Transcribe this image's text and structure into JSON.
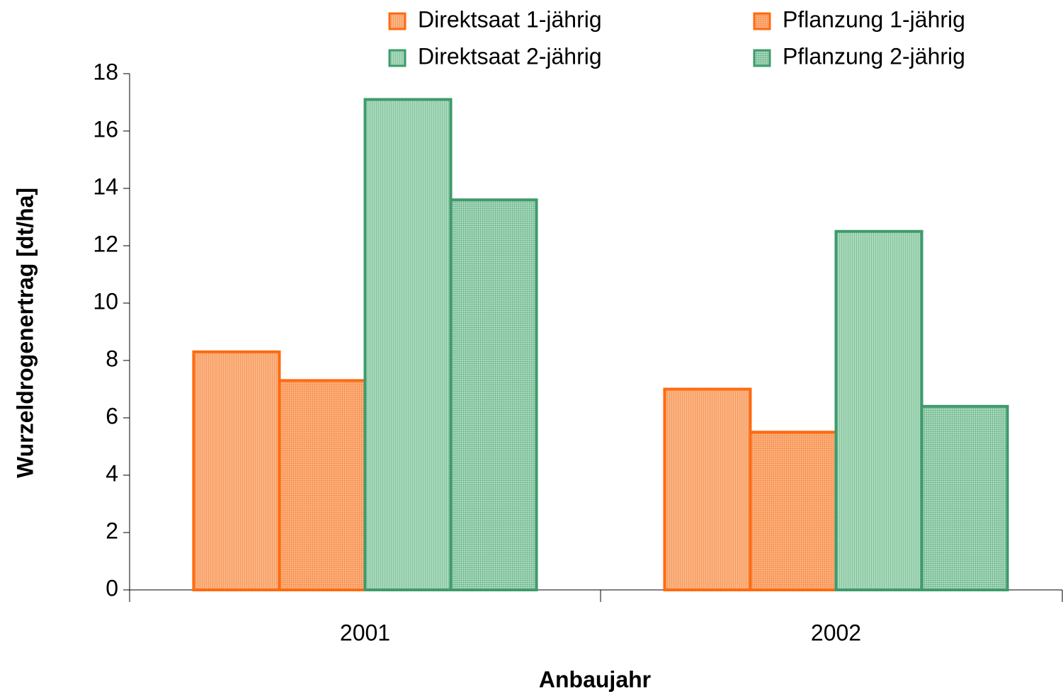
{
  "chart_data": {
    "type": "bar",
    "x_label": "Anbaujahr",
    "y_label": "Wurzeldrogenertrag [dt/ha]",
    "categories": [
      "2001",
      "2002"
    ],
    "series": [
      {
        "name": "Direktsaat 1-jährig",
        "color": "#ff6a10",
        "fill_color": "#f9b484",
        "pattern": "vertical",
        "values": [
          8.3,
          7.0
        ]
      },
      {
        "name": "Pflanzung 1-jährig",
        "color": "#ff6a10",
        "fill_color": "#f9b484",
        "pattern": "grid",
        "values": [
          7.3,
          5.5
        ]
      },
      {
        "name": "Direktsaat 2-jährig",
        "color": "#3f9a6c",
        "fill_color": "#a9d9ba",
        "pattern": "vertical",
        "values": [
          17.1,
          12.5
        ]
      },
      {
        "name": "Pflanzung 2-jährig",
        "color": "#3f9a6c",
        "fill_color": "#a9d9ba",
        "pattern": "grid",
        "values": [
          13.6,
          6.4
        ]
      }
    ],
    "ylim": [
      0,
      18
    ],
    "yticks": [
      0,
      2,
      4,
      6,
      8,
      10,
      12,
      14,
      16,
      18
    ],
    "grid": false,
    "legend": "top-right"
  }
}
